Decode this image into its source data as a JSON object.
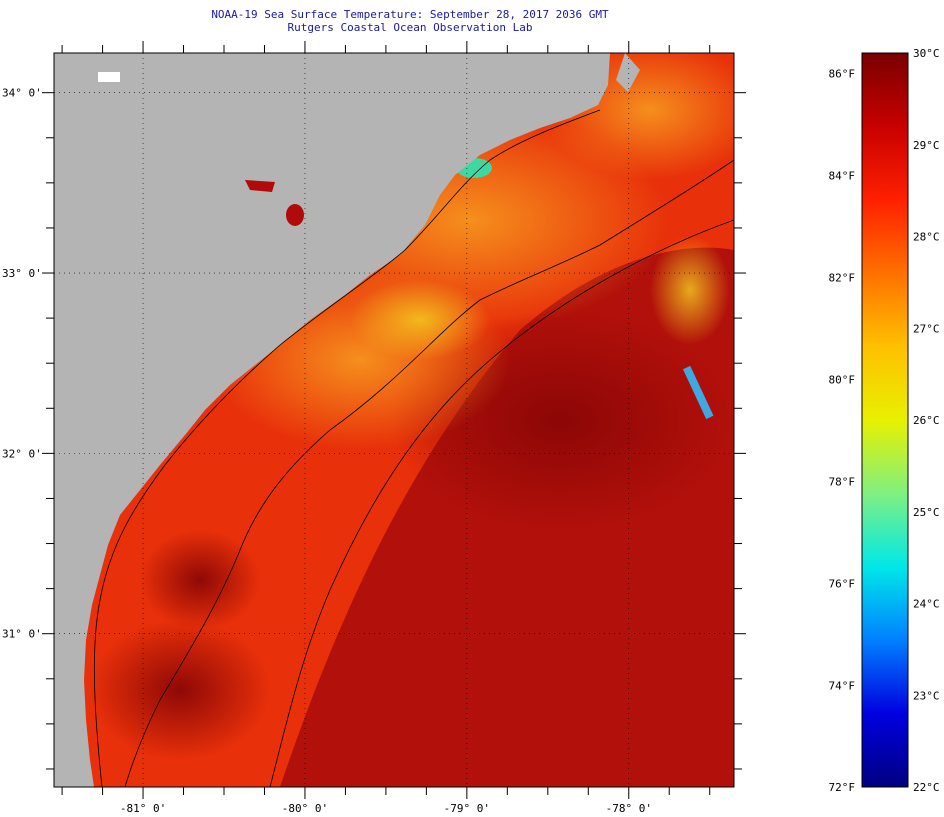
{
  "title": {
    "line1": "NOAA-19 Sea Surface Temperature:  September 28, 2017 2036 GMT",
    "line2": "Rutgers Coastal Ocean Observation Lab"
  },
  "map": {
    "lon_range": [
      -81.55,
      -77.35
    ],
    "lat_range": [
      30.15,
      34.22
    ],
    "lon_ticks": [
      {
        "value": -81,
        "label": "-81° 0'"
      },
      {
        "value": -80,
        "label": "-80° 0'"
      },
      {
        "value": -79,
        "label": "-79° 0'"
      },
      {
        "value": -78,
        "label": "-78° 0'"
      }
    ],
    "lat_ticks": [
      {
        "value": 34,
        "label": "34° 0'"
      },
      {
        "value": 33,
        "label": "33° 0'"
      },
      {
        "value": 32,
        "label": "32° 0'"
      },
      {
        "value": 31,
        "label": "31° 0'"
      }
    ],
    "land_color": "#b4b4b4",
    "ocean_warm_color": "#e8300a",
    "ocean_hot_color": "#a80a0a",
    "shelf_warm_color": "#f57a10",
    "cool_patch_color": "#3fd8a0"
  },
  "colorbar": {
    "fahrenheit_labels": [
      "86°F",
      "84°F",
      "82°F",
      "80°F",
      "78°F",
      "76°F",
      "74°F",
      "72°F"
    ],
    "celsius_labels": [
      "30°C",
      "29°C",
      "28°C",
      "27°C",
      "26°C",
      "25°C",
      "24°C",
      "23°C",
      "22°C"
    ],
    "gradient_colors": [
      "#7a0000",
      "#c80000",
      "#ff2000",
      "#ff7000",
      "#ffc000",
      "#e8f000",
      "#80f080",
      "#00e8e8",
      "#0080ff",
      "#0000e0",
      "#000080"
    ]
  }
}
